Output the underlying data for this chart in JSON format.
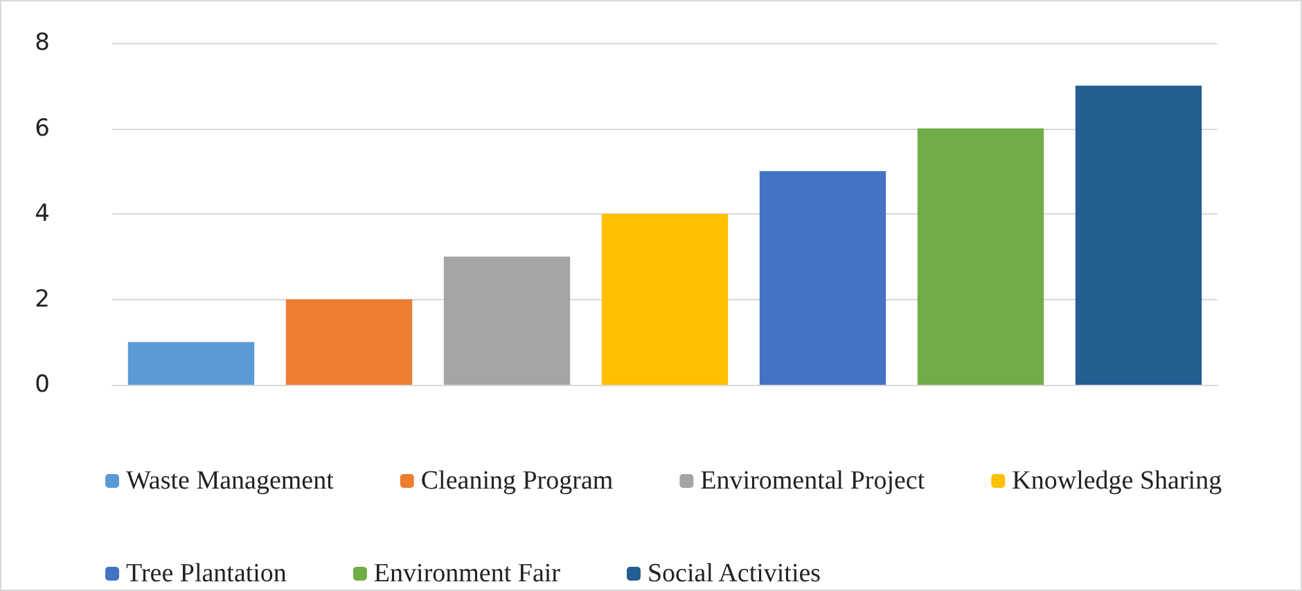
{
  "chart_data": {
    "type": "bar",
    "categories": [
      null,
      null,
      null,
      null,
      null,
      null,
      null
    ],
    "series": [
      {
        "name": "Waste Management",
        "color": "#5b9bd5",
        "values": [
          1,
          null,
          null,
          null,
          null,
          null,
          null
        ]
      },
      {
        "name": "Cleaning Program",
        "color": "#ed7d31",
        "values": [
          null,
          2,
          null,
          null,
          null,
          null,
          null
        ]
      },
      {
        "name": "Enviromental Project",
        "color": "#a5a5a5",
        "values": [
          null,
          null,
          3,
          null,
          null,
          null,
          null
        ]
      },
      {
        "name": "Knowledge Sharing",
        "color": "#ffc000",
        "values": [
          null,
          null,
          null,
          4,
          null,
          null,
          null
        ]
      },
      {
        "name": "Tree Plantation",
        "color": "#4472c4",
        "values": [
          null,
          null,
          null,
          null,
          5,
          null,
          null
        ]
      },
      {
        "name": "Environment Fair",
        "color": "#70ad47",
        "values": [
          null,
          null,
          null,
          null,
          null,
          6,
          null
        ]
      },
      {
        "name": "Social Activities",
        "color": "#255e91",
        "values": [
          null,
          null,
          null,
          null,
          null,
          null,
          7
        ]
      }
    ],
    "ylim": [
      0,
      8
    ],
    "yticks": [
      0,
      2,
      4,
      6,
      8
    ],
    "grid": "y",
    "legend": "bottom"
  }
}
